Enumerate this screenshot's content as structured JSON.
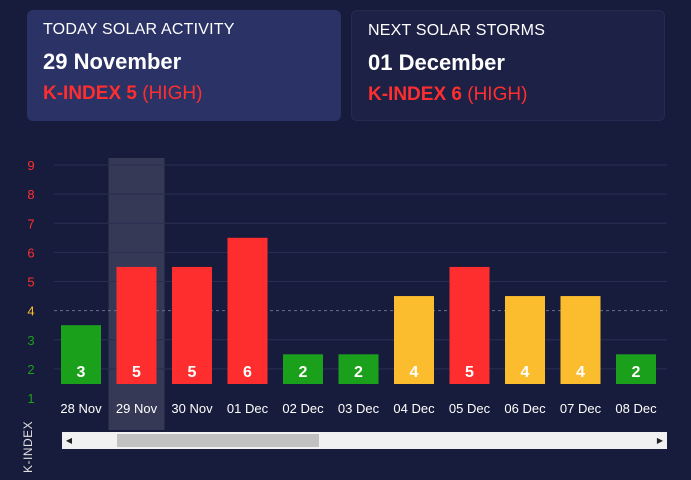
{
  "today": {
    "label": "TODAY SOLAR ACTIVITY",
    "date": "29 November",
    "index_text": "K-INDEX 5",
    "level": "(HIGH)"
  },
  "next": {
    "label": "NEXT SOLAR STORMS",
    "date": "01 December",
    "index_text": "K-INDEX 6",
    "level": "(HIGH)"
  },
  "colors": {
    "low": "#1aa01a",
    "moderate": "#fbbd2e",
    "high": "#ff2e2e",
    "background": "#181c3c"
  },
  "chart_data": {
    "type": "bar",
    "categories": [
      "28 Nov",
      "29 Nov",
      "30 Nov",
      "01 Dec",
      "02 Dec",
      "03 Dec",
      "04 Dec",
      "05 Dec",
      "06 Dec",
      "07 Dec",
      "08 Dec"
    ],
    "values": [
      3,
      5,
      5,
      6,
      2,
      2,
      4,
      5,
      4,
      4,
      2
    ],
    "bar_colors": [
      "low",
      "high",
      "high",
      "high",
      "low",
      "low",
      "moderate",
      "high",
      "moderate",
      "moderate",
      "low"
    ],
    "ylabel": "K-INDEX",
    "yticks": [
      1,
      2,
      3,
      4,
      5,
      6,
      7,
      8,
      9
    ],
    "ytick_colors": [
      "low",
      "low",
      "low",
      "moderate",
      "high",
      "high",
      "high",
      "high",
      "high"
    ],
    "ylim": [
      0.5,
      9.5
    ],
    "highlighted_category": "29 Nov",
    "dashed_threshold": 4,
    "grid": true
  },
  "scrollbar": {
    "left_icon": "arrow-left-icon",
    "right_icon": "arrow-right-icon"
  }
}
